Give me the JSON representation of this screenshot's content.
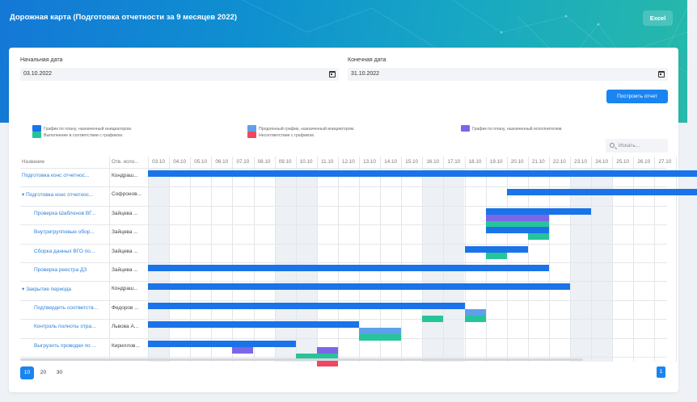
{
  "header": {
    "title": "Дорожная карта (Подготовка отчетности за 9 месяцев 2022)",
    "excel_label": "Excel"
  },
  "filters": {
    "start_label": "Начальная дата",
    "start_value": "03.10.2022",
    "end_label": "Конечная дата",
    "end_value": "31.10.2022",
    "build_label": "Построить отчет"
  },
  "legend": [
    {
      "label": "График по плану, назначенный инициатором.",
      "color": "#1a73e8"
    },
    {
      "label": "Выполнение в соответствии с графиком.",
      "color": "#26c49a"
    },
    {
      "label": "Продленный график, назначенный инициатором.",
      "color": "#5ea0ec"
    },
    {
      "label": "Несоответствие с графиком.",
      "color": "#f0465f"
    },
    {
      "label": "График по плану, назначенный исполнителем.",
      "color": "#7b66e8"
    }
  ],
  "search": {
    "placeholder": "Искать..."
  },
  "columns": {
    "name": "Название",
    "owner": "Отв. испо..."
  },
  "dates": [
    "03.10",
    "04.10",
    "05.10",
    "06.10",
    "07.10",
    "08.10",
    "09.10",
    "10.10",
    "11.10",
    "12.10",
    "13.10",
    "14.10",
    "15.10",
    "16.10",
    "17.10",
    "18.10",
    "19.10",
    "20.10",
    "21.10",
    "22.10",
    "23.10",
    "24.10",
    "25.10",
    "26.10",
    "27.10"
  ],
  "rows": [
    {
      "name": "Подготовка конс отчетнос...",
      "owner": "Кондраш...",
      "expand": "",
      "indent": 0
    },
    {
      "name": "Подготовка конс отчетнос...",
      "owner": "Софронов...",
      "expand": "▾",
      "indent": 0
    },
    {
      "name": "Проверка Шаблонов ВГ...",
      "owner": "Зайцева ...",
      "expand": "",
      "indent": 1
    },
    {
      "name": "Внутригрупповые обор...",
      "owner": "Зайцева ...",
      "expand": "",
      "indent": 1
    },
    {
      "name": "Сборка данных ВГО по...",
      "owner": "Зайцева ...",
      "expand": "",
      "indent": 1
    },
    {
      "name": "Проверка реестра ДЗ",
      "owner": "Зайцева ...",
      "expand": "",
      "indent": 1
    },
    {
      "name": "Закрытие периода",
      "owner": "Кондраш...",
      "expand": "▾",
      "indent": 0
    },
    {
      "name": "Подтвердить соответств...",
      "owner": "Федоров ...",
      "expand": "",
      "indent": 1
    },
    {
      "name": "Контроль полноты отра...",
      "owner": "Львова А...",
      "expand": "",
      "indent": 1
    },
    {
      "name": "Выгрузить проводки по ...",
      "owner": "Кириллов...",
      "expand": "",
      "indent": 1
    }
  ],
  "bars": [
    [
      0,
      0,
      0,
      26,
      "#1a73e8"
    ],
    [
      1,
      0,
      17,
      26,
      "#1a73e8"
    ],
    [
      2,
      0,
      16,
      21,
      "#1a73e8"
    ],
    [
      2,
      1,
      16,
      19,
      "#7b66e8"
    ],
    [
      2,
      2,
      16,
      19,
      "#26c49a"
    ],
    [
      3,
      0,
      16,
      19,
      "#1a73e8"
    ],
    [
      3,
      1,
      18,
      19,
      "#26c49a"
    ],
    [
      4,
      0,
      15,
      18,
      "#1a73e8"
    ],
    [
      4,
      1,
      16,
      17,
      "#26c49a"
    ],
    [
      5,
      0,
      0,
      19,
      "#1a73e8"
    ],
    [
      6,
      0,
      0,
      20,
      "#1a73e8"
    ],
    [
      7,
      0,
      0,
      15,
      "#1a73e8"
    ],
    [
      7,
      1,
      15,
      16,
      "#5ea0ec"
    ],
    [
      7,
      2,
      13,
      14,
      "#26c49a"
    ],
    [
      7,
      2,
      15,
      16,
      "#26c49a"
    ],
    [
      8,
      0,
      0,
      10,
      "#1a73e8"
    ],
    [
      8,
      1,
      10,
      12,
      "#5ea0ec"
    ],
    [
      8,
      2,
      10,
      12,
      "#26c49a"
    ],
    [
      9,
      0,
      0,
      7,
      "#1a73e8"
    ],
    [
      9,
      1,
      4,
      5,
      "#7b66e8"
    ],
    [
      9,
      1,
      8,
      9,
      "#7b66e8"
    ],
    [
      9,
      2,
      7,
      9,
      "#26c49a"
    ],
    [
      9,
      3,
      8,
      9,
      "#f0465f"
    ]
  ],
  "weekend_columns": [
    0,
    6,
    7,
    13,
    14,
    20,
    21
  ],
  "pager": {
    "sizes": [
      "10",
      "20",
      "30"
    ],
    "active": "10",
    "page": "1"
  }
}
